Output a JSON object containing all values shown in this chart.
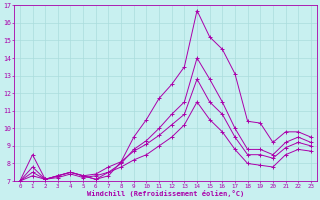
{
  "xlabel": "Windchill (Refroidissement éolien,°C)",
  "xlim": [
    -0.5,
    23.5
  ],
  "ylim": [
    7,
    17
  ],
  "yticks": [
    7,
    8,
    9,
    10,
    11,
    12,
    13,
    14,
    15,
    16,
    17
  ],
  "xticks": [
    0,
    1,
    2,
    3,
    4,
    5,
    6,
    7,
    8,
    9,
    10,
    11,
    12,
    13,
    14,
    15,
    16,
    17,
    18,
    19,
    20,
    21,
    22,
    23
  ],
  "background_color": "#c8f0f0",
  "grid_color": "#aadddd",
  "line_color": "#aa00aa",
  "curves": [
    [
      7.0,
      8.5,
      7.1,
      7.3,
      7.5,
      7.3,
      7.1,
      7.3,
      8.1,
      9.5,
      10.5,
      11.7,
      12.5,
      13.5,
      16.7,
      15.2,
      14.5,
      13.1,
      10.4,
      10.3,
      9.2,
      9.8,
      9.8,
      9.5
    ],
    [
      7.0,
      7.8,
      7.1,
      7.3,
      7.5,
      7.3,
      7.1,
      7.5,
      8.0,
      8.8,
      9.3,
      10.0,
      10.8,
      11.5,
      14.0,
      12.8,
      11.5,
      10.0,
      8.8,
      8.8,
      8.5,
      9.2,
      9.5,
      9.2
    ],
    [
      7.0,
      7.5,
      7.1,
      7.3,
      7.5,
      7.3,
      7.4,
      7.8,
      8.1,
      8.7,
      9.1,
      9.6,
      10.2,
      10.8,
      12.8,
      11.5,
      10.8,
      9.5,
      8.5,
      8.5,
      8.3,
      8.9,
      9.2,
      9.0
    ],
    [
      7.0,
      7.3,
      7.1,
      7.2,
      7.4,
      7.2,
      7.3,
      7.5,
      7.8,
      8.2,
      8.5,
      9.0,
      9.5,
      10.2,
      11.5,
      10.5,
      9.8,
      8.8,
      8.0,
      7.9,
      7.8,
      8.5,
      8.8,
      8.7
    ]
  ]
}
